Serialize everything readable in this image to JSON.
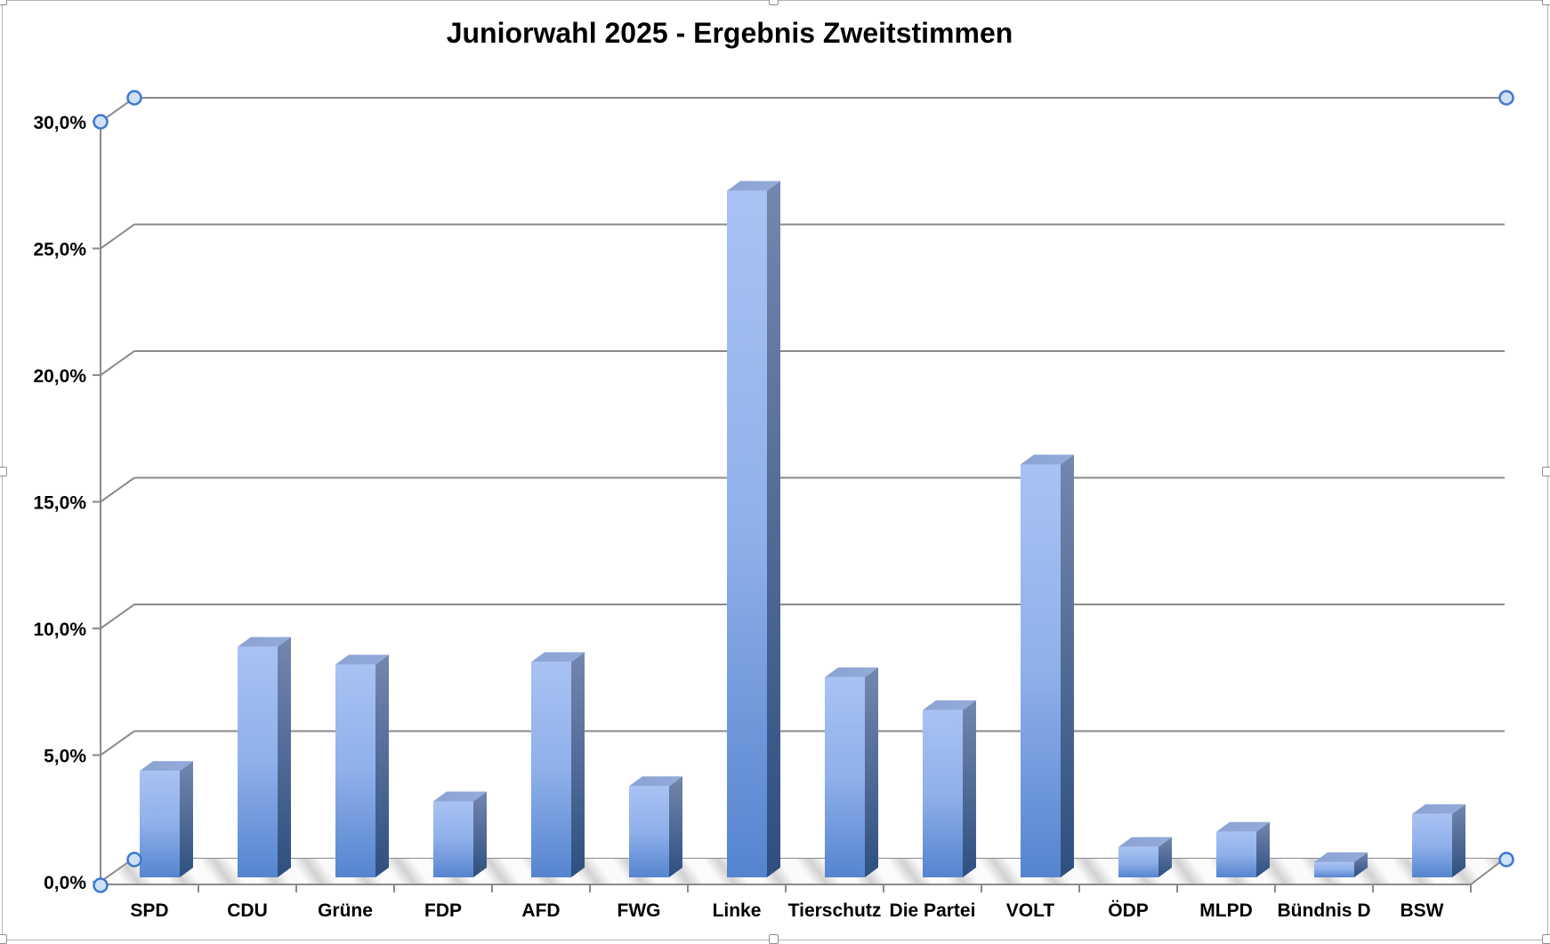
{
  "window": {
    "background": "#ffffff",
    "frame_border_color": "#b3b3b3",
    "resize_handle_fill": "#ffffff",
    "resize_handle_border": "#8e8e8e",
    "selection_circle_fill": "#cfe1f6",
    "selection_circle_border": "#3d77cf"
  },
  "chart_data": {
    "type": "bar",
    "style": "3d-column",
    "title": "Juniorwahl 2025 - Ergebnis Zweitstimmen",
    "categories": [
      "SPD",
      "CDU",
      "Grüne",
      "FDP",
      "AFD",
      "FWG",
      "Linke",
      "Tierschutz",
      "Die Partei",
      "VOLT",
      "ÖDP",
      "MLPD",
      "Bündnis D",
      "BSW"
    ],
    "values": [
      4.2,
      9.1,
      8.4,
      3.0,
      8.5,
      3.6,
      27.1,
      7.9,
      6.6,
      16.3,
      1.2,
      1.8,
      0.6,
      2.5
    ],
    "value_unit": "%",
    "xlabel": "",
    "ylabel": "",
    "ylim": [
      0,
      30
    ],
    "y_tick_values": [
      0,
      5,
      10,
      15,
      20,
      25,
      30
    ],
    "y_ticks": [
      "0,0%",
      "5,0%",
      "10,0%",
      "15,0%",
      "20,0%",
      "25,0%",
      "30,0%"
    ],
    "grid": true,
    "legend": "none",
    "colors": {
      "bar_front_top": "#a9c2f3",
      "bar_front_mid": "#8fb0ea",
      "bar_front_bottom": "#5584cf",
      "bar_side_top": "#7487ae",
      "bar_side_bottom": "#2e4f80",
      "bar_top_face": "#8ba3d4",
      "gridline": "#8a8a8a",
      "floor_stripe": "#d2d2d2",
      "label_text": "#000000"
    }
  }
}
